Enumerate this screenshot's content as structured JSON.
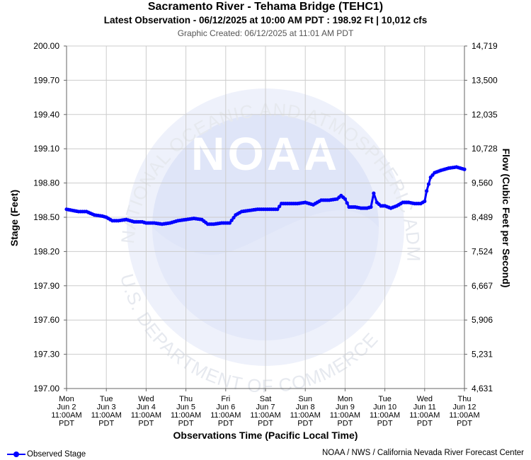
{
  "header": {
    "title": "Sacramento River - Tehama Bridge (TEHC1)",
    "subtitle": "Latest Observation - 06/12/2025 at 10:00 AM PDT : 198.92 Ft | 10,012 cfs",
    "created": "Graphic Created: 06/12/2025 at 11:01 AM PDT"
  },
  "footer": {
    "legend_label": "Observed Stage",
    "credit": "NOAA / NWS / California Nevada River Forecast Center"
  },
  "watermark": {
    "logo_text": "NOAA",
    "ring_text_top": "NATIONAL OCEANIC AND ATMOSPHERIC ADMINISTRATION",
    "ring_text_bottom": "U.S. DEPARTMENT OF COMMERCE"
  },
  "colors": {
    "series": "#0000ff",
    "grid": "#cccccc",
    "watermark": "#e8ecf8"
  },
  "chart_data": {
    "type": "line",
    "xlabel": "Observations Time (Pacific Local Time)",
    "ylabel": "Stage (Feet)",
    "y2label": "Flow (Cubic Feet per Second)",
    "ylim": [
      197.0,
      200.0
    ],
    "yticks": [
      "200.00",
      "199.70",
      "199.40",
      "199.10",
      "198.80",
      "198.50",
      "198.20",
      "197.90",
      "197.60",
      "197.30",
      "197.00"
    ],
    "y2ticks": [
      "14,719",
      "13,500",
      "12,035",
      "10,728",
      "9,560",
      "8,489",
      "7,524",
      "6,667",
      "5,906",
      "5,231",
      "4,631"
    ],
    "xticks": [
      [
        "Mon",
        "Jun 2",
        "11:00AM",
        "PDT"
      ],
      [
        "Tue",
        "Jun 3",
        "11:00AM",
        "PDT"
      ],
      [
        "Wed",
        "Jun 4",
        "11:00AM",
        "PDT"
      ],
      [
        "Thu",
        "Jun 5",
        "11:00AM",
        "PDT"
      ],
      [
        "Fri",
        "Jun 6",
        "11:00AM",
        "PDT"
      ],
      [
        "Sat",
        "Jun 7",
        "11:00AM",
        "PDT"
      ],
      [
        "Sun",
        "Jun 8",
        "11:00AM",
        "PDT"
      ],
      [
        "Mon",
        "Jun 9",
        "11:00AM",
        "PDT"
      ],
      [
        "Tue",
        "Jun 10",
        "11:00AM",
        "PDT"
      ],
      [
        "Wed",
        "Jun 11",
        "11:00AM",
        "PDT"
      ],
      [
        "Thu",
        "Jun 12",
        "11:00AM",
        "PDT"
      ]
    ],
    "grid": true,
    "legend": "bottom-left",
    "series": [
      {
        "name": "Observed Stage",
        "x_days": [
          0,
          0.15,
          0.3,
          0.5,
          0.7,
          0.9,
          1.0,
          1.15,
          1.3,
          1.5,
          1.7,
          1.9,
          2.0,
          2.2,
          2.4,
          2.6,
          2.8,
          3.0,
          3.2,
          3.4,
          3.55,
          3.7,
          3.9,
          4.0,
          4.1,
          4.25,
          4.4,
          4.6,
          4.8,
          5.0,
          5.2,
          5.3,
          5.4,
          5.6,
          5.8,
          6.0,
          6.2,
          6.4,
          6.6,
          6.8,
          6.9,
          7.0,
          7.1,
          7.25,
          7.4,
          7.55,
          7.65,
          7.72,
          7.8,
          7.9,
          8.0,
          8.15,
          8.3,
          8.45,
          8.6,
          8.75,
          8.9,
          9.0,
          9.05,
          9.15,
          9.25,
          9.4,
          9.6,
          9.8,
          9.9,
          10.0
        ],
        "values": [
          198.57,
          198.56,
          198.55,
          198.55,
          198.52,
          198.51,
          198.5,
          198.47,
          198.47,
          198.48,
          198.46,
          198.46,
          198.45,
          198.45,
          198.44,
          198.45,
          198.47,
          198.48,
          198.49,
          198.48,
          198.44,
          198.44,
          198.45,
          198.45,
          198.45,
          198.52,
          198.55,
          198.56,
          198.57,
          198.57,
          198.57,
          198.57,
          198.62,
          198.62,
          198.62,
          198.63,
          198.61,
          198.65,
          198.65,
          198.66,
          198.69,
          198.66,
          198.59,
          198.59,
          198.58,
          198.58,
          198.59,
          198.71,
          198.63,
          198.6,
          198.6,
          198.58,
          198.6,
          198.63,
          198.63,
          198.62,
          198.62,
          198.64,
          198.73,
          198.85,
          198.89,
          198.91,
          198.93,
          198.94,
          198.93,
          198.92
        ]
      }
    ]
  }
}
